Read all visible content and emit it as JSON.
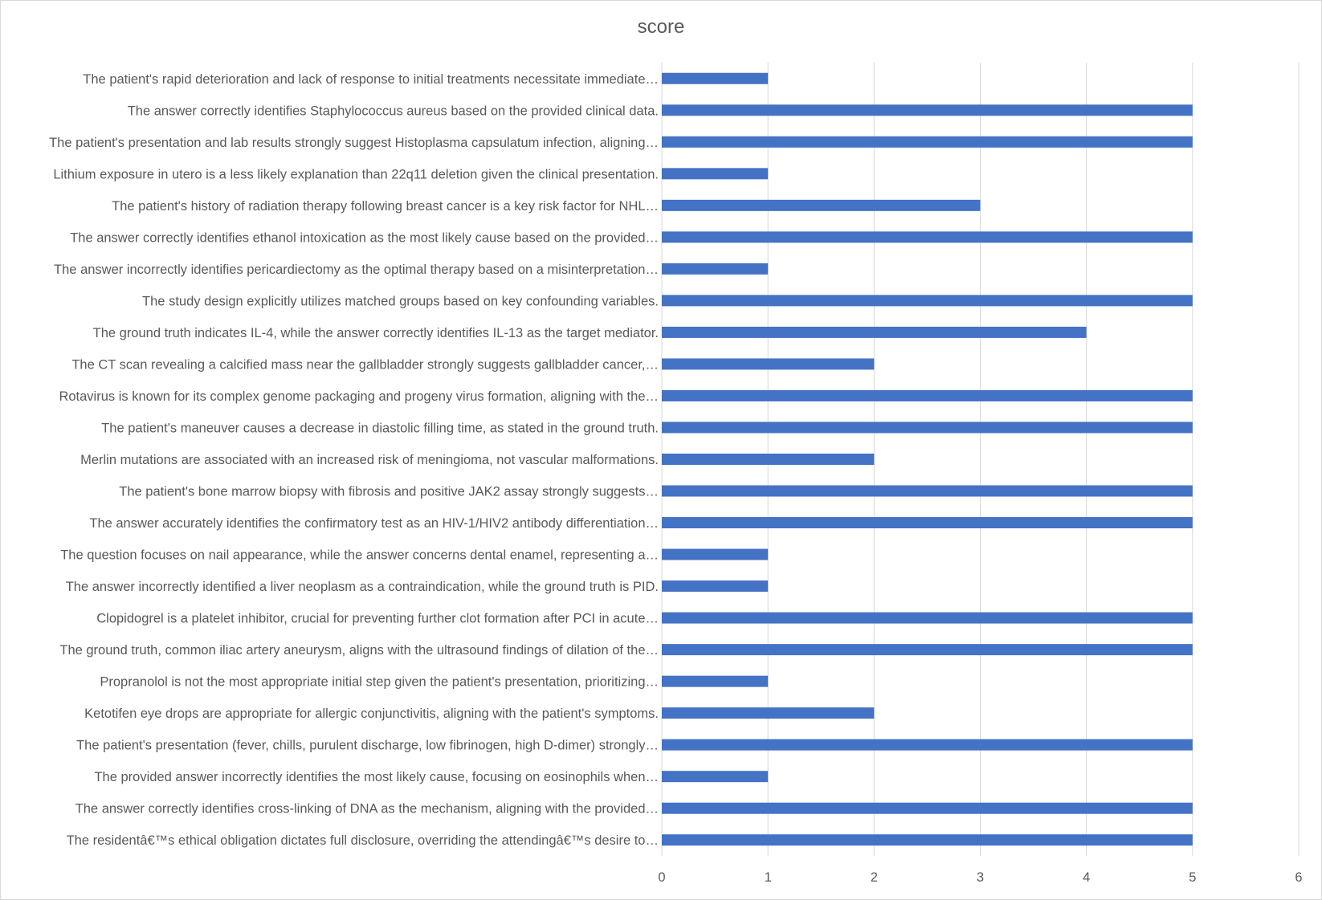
{
  "chart_data": {
    "type": "bar",
    "orientation": "horizontal",
    "title": "score",
    "xlabel": "",
    "ylabel": "",
    "xlim": [
      0,
      6
    ],
    "ticks": [
      "0",
      "1",
      "2",
      "3",
      "4",
      "5",
      "6"
    ],
    "grid": true,
    "legend": "none",
    "bar_color": "#4472C4",
    "categories": [
      "The patient's rapid deterioration and lack of response to initial treatments necessitate immediate…",
      "The answer correctly identifies Staphylococcus aureus based on the provided clinical data.",
      "The patient's presentation and lab results strongly suggest Histoplasma capsulatum infection, aligning…",
      "Lithium exposure in utero is a less likely explanation than 22q11 deletion given the clinical presentation.",
      "The patient's history of radiation therapy following breast cancer is a key risk factor for NHL…",
      "The answer correctly identifies ethanol intoxication as the most likely cause based on the provided…",
      "The answer incorrectly identifies pericardiectomy as the optimal therapy based on a misinterpretation…",
      "The study design explicitly utilizes matched groups based on key confounding variables.",
      "The ground truth indicates IL-4, while the answer correctly identifies IL-13 as the target mediator.",
      "The CT scan revealing a calcified mass near the gallbladder strongly suggests gallbladder cancer,…",
      "Rotavirus is known for its complex genome packaging and progeny virus formation, aligning with the…",
      "The patient's maneuver causes a decrease in diastolic filling time, as stated in the ground truth.",
      "Merlin mutations are associated with an increased risk of meningioma, not vascular malformations.",
      "The patient's bone marrow biopsy with fibrosis and positive JAK2 assay strongly suggests…",
      "The answer accurately identifies the confirmatory test as an HIV-1/HIV2 antibody differentiation…",
      "The question focuses on nail appearance, while the answer concerns dental enamel, representing a…",
      "The answer incorrectly identified a liver neoplasm as a contraindication, while the ground truth is PID.",
      "Clopidogrel is a platelet inhibitor, crucial for preventing further clot formation after PCI in acute…",
      "The ground truth, common iliac artery aneurysm, aligns with the ultrasound findings of dilation of the…",
      "Propranolol is not the most appropriate initial step given the patient's presentation, prioritizing…",
      "Ketotifen eye drops are appropriate for allergic conjunctivitis, aligning with the patient's symptoms.",
      "The patient's presentation (fever, chills, purulent discharge, low fibrinogen, high D-dimer) strongly…",
      "The provided answer incorrectly identifies the most likely cause, focusing on eosinophils when…",
      "The answer correctly identifies cross-linking of DNA as the mechanism, aligning with the provided…",
      "The residentâ€™s ethical obligation dictates full disclosure, overriding the attendingâ€™s desire to…"
    ],
    "values": [
      1,
      5,
      5,
      1,
      3,
      5,
      1,
      5,
      4,
      2,
      5,
      5,
      2,
      5,
      5,
      1,
      1,
      5,
      5,
      1,
      2,
      5,
      1,
      5,
      5
    ]
  }
}
